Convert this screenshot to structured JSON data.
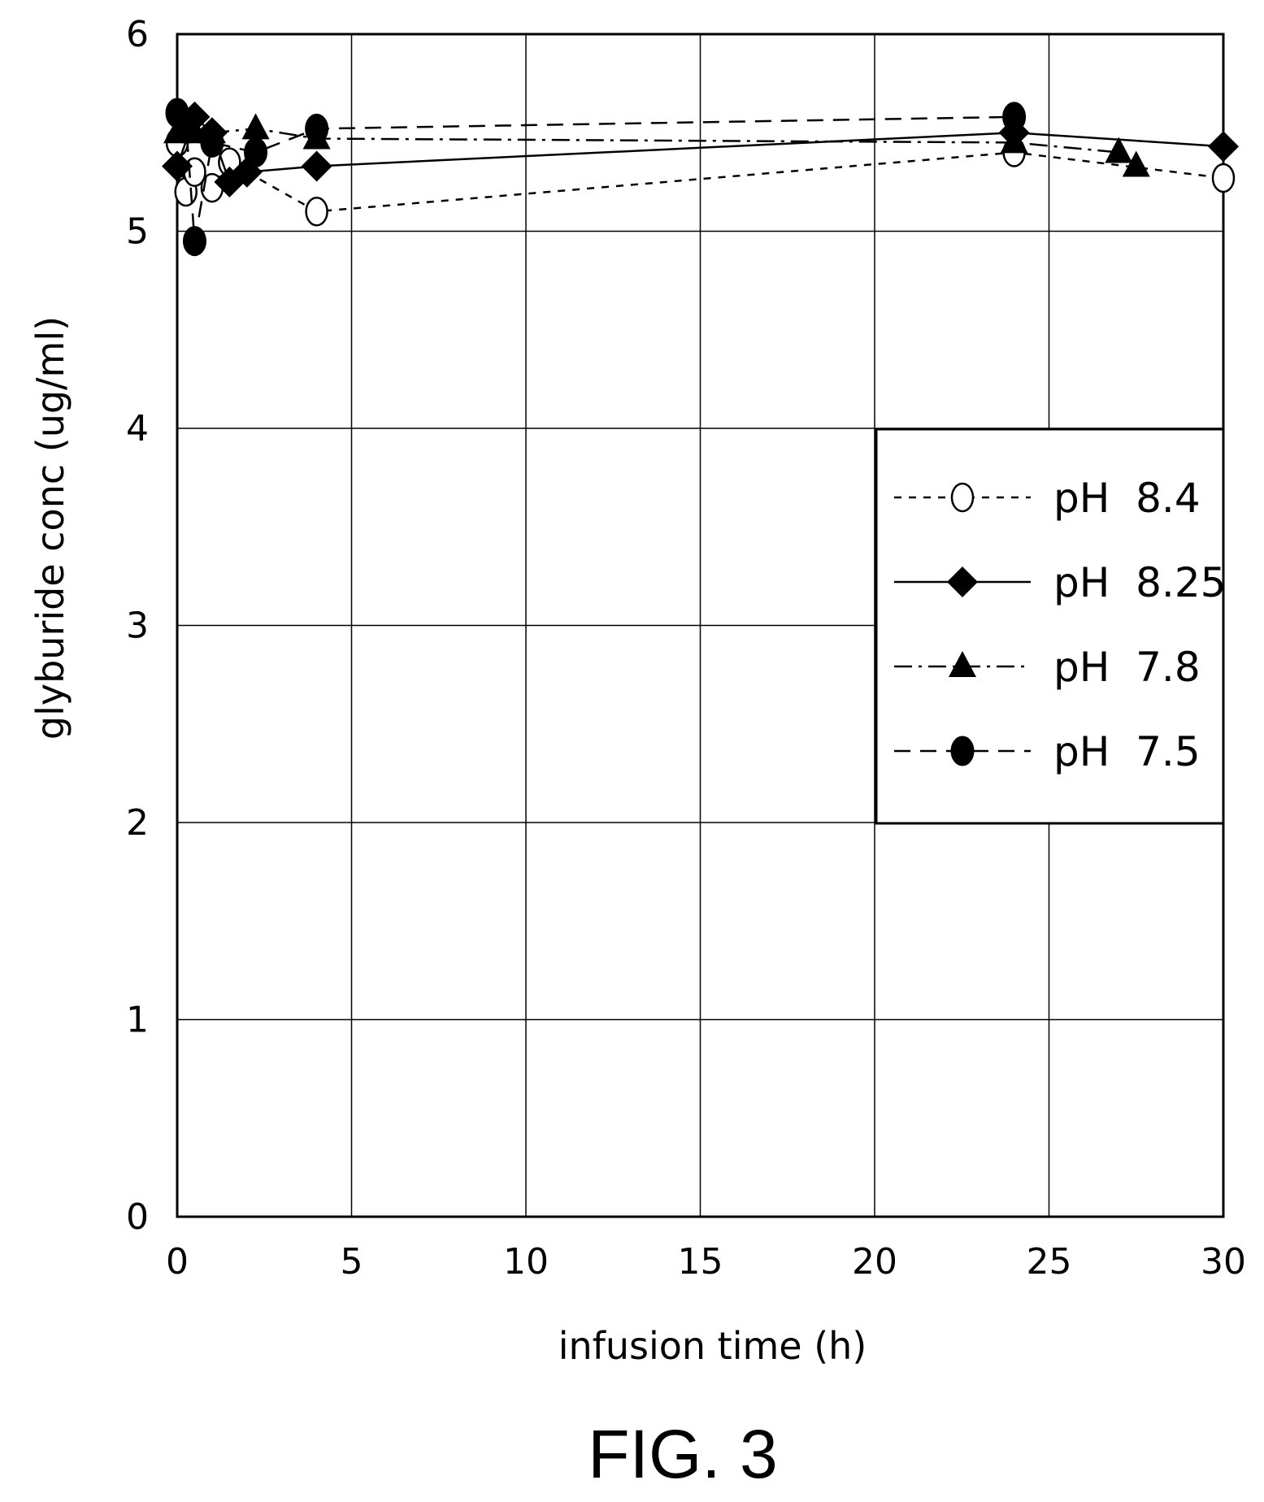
{
  "chart_data": {
    "type": "line",
    "title": "",
    "xlabel": "infusion time  (h)",
    "ylabel": "glyburide conc  (ug/ml)",
    "xlim": [
      0,
      30
    ],
    "ylim": [
      0,
      6
    ],
    "xticks": [
      "0",
      "5",
      "10",
      "15",
      "20",
      "25",
      "30"
    ],
    "yticks": [
      "0",
      "1",
      "2",
      "3",
      "4",
      "5",
      "6"
    ],
    "grid": true,
    "legend_position": "right",
    "series": [
      {
        "name": "pH  8.4",
        "marker": "open-circle",
        "line": "dashed",
        "points": [
          [
            0,
            5.45
          ],
          [
            0.25,
            5.2
          ],
          [
            0.5,
            5.3
          ],
          [
            1,
            5.22
          ],
          [
            1.5,
            5.35
          ],
          [
            4,
            5.1
          ],
          [
            24,
            5.4
          ],
          [
            30,
            5.27
          ]
        ]
      },
      {
        "name": "pH  8.25",
        "marker": "filled-diamond",
        "line": "solid",
        "points": [
          [
            0,
            5.33
          ],
          [
            0.5,
            5.58
          ],
          [
            1,
            5.5
          ],
          [
            1.5,
            5.25
          ],
          [
            2,
            5.3
          ],
          [
            4,
            5.33
          ],
          [
            24,
            5.5
          ],
          [
            30,
            5.43
          ]
        ]
      },
      {
        "name": "pH  7.8",
        "marker": "filled-triangle",
        "line": "dash-dot",
        "points": [
          [
            0,
            5.5
          ],
          [
            0.5,
            5.5
          ],
          [
            1,
            5.5
          ],
          [
            2.25,
            5.52
          ],
          [
            4,
            5.47
          ],
          [
            24,
            5.45
          ],
          [
            27,
            5.4
          ],
          [
            27.5,
            5.33
          ]
        ]
      },
      {
        "name": "pH  7.5",
        "marker": "filled-circle",
        "line": "long-dashed",
        "points": [
          [
            0,
            5.6
          ],
          [
            0.25,
            5.55
          ],
          [
            0.5,
            4.95
          ],
          [
            1,
            5.45
          ],
          [
            2.25,
            5.4
          ],
          [
            4,
            5.52
          ],
          [
            24,
            5.58
          ]
        ]
      }
    ]
  },
  "figure_label": "FIG. 3"
}
